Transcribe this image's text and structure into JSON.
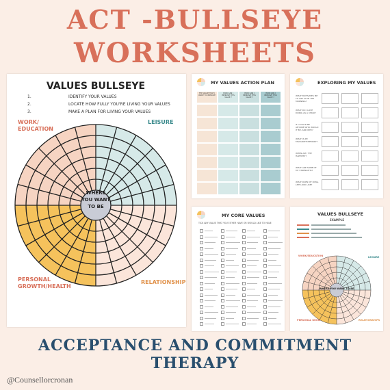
{
  "header": {
    "line1": "ACT -BULLSEYE",
    "line2": "WORKSHEETS"
  },
  "main_sheet": {
    "title": "VALUES BULLSEYE",
    "steps": [
      {
        "num": "1.",
        "text": "IDENTIFY YOUR VALUES"
      },
      {
        "num": "2.",
        "text": "LOCATE HOW FULLY YOU'RE LIVING YOUR VALUES"
      },
      {
        "num": "3.",
        "text": "MAKE A PLAN FOR LIVING YOUR VALUES"
      }
    ],
    "quadrants": {
      "work": "WORK/\nEDUCATION",
      "leisure": "LEISURE",
      "personal": "PERSONAL\nGROWTH/HEALTH",
      "relationships": "RELATIONSHIPS"
    },
    "center_text": "WHERE\nYOU WANT\nTO BE",
    "colors": {
      "work": "#f6d4c2",
      "leisure": "#d6e9e8",
      "personal": "#f5c25c",
      "relationships": "#fbe5da",
      "center": "#c9ccd6"
    }
  },
  "action_plan": {
    "title": "MY VALUES ACTION PLAN",
    "headers": [
      "THE VALUE THAT I WANT TO IMPROVE",
      "HOW CAN I IMPROVE THIS VALUE ?",
      "HOW CAN I IMPROVE THIS VALUE ?",
      "HOW CAN I IMPROVE THIS VALUE ?"
    ]
  },
  "exploring": {
    "title": "EXPLORING MY VALUES",
    "questions": [
      "WHAT MOTIVATES ME TO GET UP IN THE MORNING?",
      "WHAT DO I LOVE DOING AS A CHILD?",
      "IF I COULD BE ANYONE WHO WOULD IT BE, AND WHY?",
      "WHAT IS MY FAVOURITE MEMORY?",
      "WHEN AM I THE HAPPIEST?",
      "WHAT ARE SOME OF MY STRENGTHS?",
      "WHAT DOES MY IDEAL LIFE LOOK LIKE?"
    ]
  },
  "core_values": {
    "title": "MY CORE VALUES",
    "subtitle": "TICK ANY VALUE THAT YOU EITHER HAVE OR WOULD LIKE TO HAVE"
  },
  "example": {
    "title": "VALUES BULLSEYE",
    "subtitle": "EXAMPLE",
    "labels": {
      "work": "WORK/EDUCATION",
      "leisure": "LEISURE",
      "personal": "PERSONAL GROWTH/ HEALTH",
      "relationships": "RELATIONSHIPS"
    },
    "center_text": "WHERE YOU WANT TO BE"
  },
  "footer": {
    "line1": "ACCEPTANCE AND COMMITMENT",
    "line2": "THERAPY",
    "handle": "@Counsellorcronan"
  }
}
